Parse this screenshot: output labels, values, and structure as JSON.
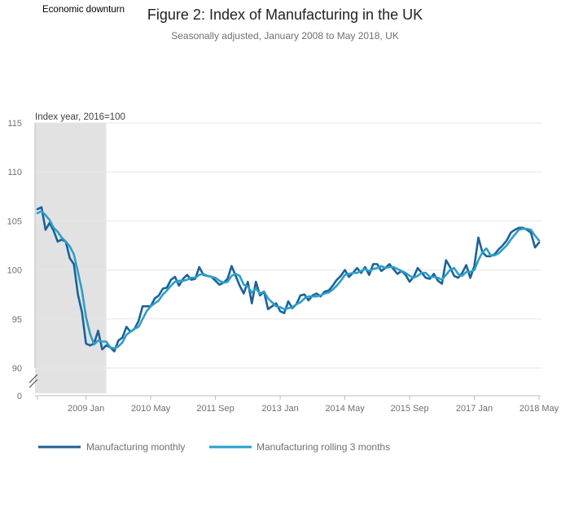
{
  "chart_data": {
    "type": "line",
    "title": "Figure 2: Index of Manufacturing in the UK",
    "subtitle": "Seasonally adjusted, January 2008 to May 2018, UK",
    "ylabel": "Index year, 2016=100",
    "xlabel": "",
    "ylim": [
      90,
      115
    ],
    "y_ticks": [
      90,
      95,
      100,
      105,
      110,
      115
    ],
    "y_break_label": "0",
    "x_ticks": [
      {
        "index": 12,
        "label": "2009 Jan"
      },
      {
        "index": 28,
        "label": "2010 May"
      },
      {
        "index": 44,
        "label": "2011 Sep"
      },
      {
        "index": 60,
        "label": "2013 Jan"
      },
      {
        "index": 76,
        "label": "2014 May"
      },
      {
        "index": 92,
        "label": "2015 Sep"
      },
      {
        "index": 108,
        "label": "2017 Jan"
      },
      {
        "index": 124,
        "label": "2018 May"
      }
    ],
    "x_start": "2008 Jan",
    "shaded_region": {
      "label": "Economic downturn",
      "start_index": 0,
      "end_index": 17
    },
    "series": [
      {
        "name": "Manufacturing monthly",
        "color": "#206095",
        "values": [
          106.2,
          106.4,
          104.1,
          104.8,
          104.0,
          102.9,
          103.1,
          102.9,
          101.2,
          100.6,
          97.5,
          95.7,
          92.5,
          92.3,
          92.5,
          93.8,
          91.9,
          92.3,
          92.1,
          91.7,
          92.8,
          93.1,
          94.2,
          93.7,
          94.0,
          94.8,
          96.3,
          96.3,
          96.3,
          97.1,
          97.4,
          98.1,
          98.2,
          99.0,
          99.3,
          98.4,
          99.1,
          99.5,
          99.0,
          99.1,
          100.3,
          99.5,
          99.4,
          99.3,
          98.9,
          98.5,
          98.7,
          99.1,
          100.4,
          99.4,
          98.4,
          97.6,
          98.8,
          96.6,
          98.8,
          97.4,
          97.8,
          96.0,
          96.3,
          96.6,
          95.8,
          95.6,
          96.8,
          96.1,
          96.5,
          97.4,
          97.5,
          96.9,
          97.4,
          97.6,
          97.3,
          97.8,
          97.9,
          98.4,
          99.0,
          99.4,
          100.0,
          99.3,
          99.7,
          100.2,
          99.7,
          100.3,
          99.5,
          100.6,
          100.6,
          99.9,
          100.2,
          100.6,
          100.1,
          99.6,
          99.9,
          99.5,
          98.8,
          99.3,
          100.2,
          99.7,
          99.2,
          99.1,
          99.6,
          98.9,
          98.6,
          101.0,
          100.3,
          99.4,
          99.2,
          99.7,
          100.5,
          99.2,
          100.4,
          103.3,
          101.8,
          101.4,
          101.4,
          101.6,
          102.1,
          102.5,
          103.0,
          103.8,
          104.1,
          104.3,
          104.3,
          104.1,
          103.8,
          102.3,
          102.8
        ]
      },
      {
        "name": "Manufacturing rolling 3 months",
        "color": "#27a0cc",
        "values": [
          105.8,
          106.0,
          105.6,
          105.1,
          104.3,
          103.9,
          103.3,
          102.9,
          102.4,
          101.6,
          99.8,
          97.9,
          95.2,
          93.5,
          92.4,
          92.8,
          92.7,
          92.7,
          92.1,
          92.0,
          92.2,
          92.6,
          93.4,
          93.7,
          94.0,
          94.2,
          95.0,
          95.8,
          96.3,
          96.6,
          96.9,
          97.5,
          97.9,
          98.4,
          98.8,
          98.9,
          98.9,
          99.0,
          99.2,
          99.2,
          99.5,
          99.6,
          99.4,
          99.3,
          99.2,
          98.9,
          98.7,
          98.8,
          99.4,
          99.6,
          99.4,
          98.5,
          98.3,
          97.7,
          98.1,
          97.6,
          97.8,
          97.1,
          96.7,
          96.3,
          96.2,
          96.0,
          96.1,
          96.2,
          96.5,
          96.7,
          97.1,
          97.3,
          97.3,
          97.3,
          97.4,
          97.6,
          97.7,
          98.0,
          98.4,
          98.9,
          99.5,
          99.6,
          99.7,
          99.7,
          99.9,
          100.1,
          99.9,
          100.1,
          100.2,
          100.4,
          100.2,
          100.3,
          100.3,
          100.1,
          99.9,
          99.7,
          99.4,
          99.2,
          99.4,
          99.7,
          99.7,
          99.3,
          99.3,
          99.2,
          99.0,
          99.5,
          100.0,
          100.2,
          99.6,
          99.4,
          99.8,
          99.8,
          100.0,
          101.0,
          101.8,
          102.2,
          101.5,
          101.5,
          101.7,
          102.1,
          102.5,
          103.1,
          103.6,
          104.1,
          104.2,
          104.2,
          104.1,
          103.5,
          103.0
        ]
      }
    ],
    "legend": [
      "Manufacturing monthly",
      "Manufacturing rolling 3 months"
    ],
    "legend_position": "bottom-left",
    "grid": true
  }
}
